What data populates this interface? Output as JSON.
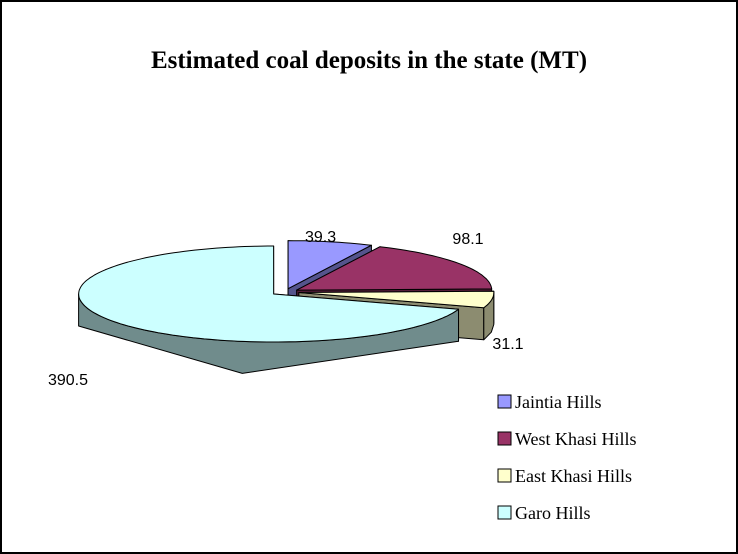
{
  "chart_data": {
    "type": "pie",
    "title": "Estimated coal deposits in the state (MT)",
    "categories": [
      "Jaintia Hills",
      "West Khasi Hills",
      "East Khasi Hills",
      "Garo Hills"
    ],
    "values": [
      39.3,
      98.1,
      31.1,
      390.5
    ],
    "colors": [
      "#9999ff",
      "#993366",
      "#ffffcc",
      "#ccffff"
    ],
    "legend": "bottom-right"
  }
}
